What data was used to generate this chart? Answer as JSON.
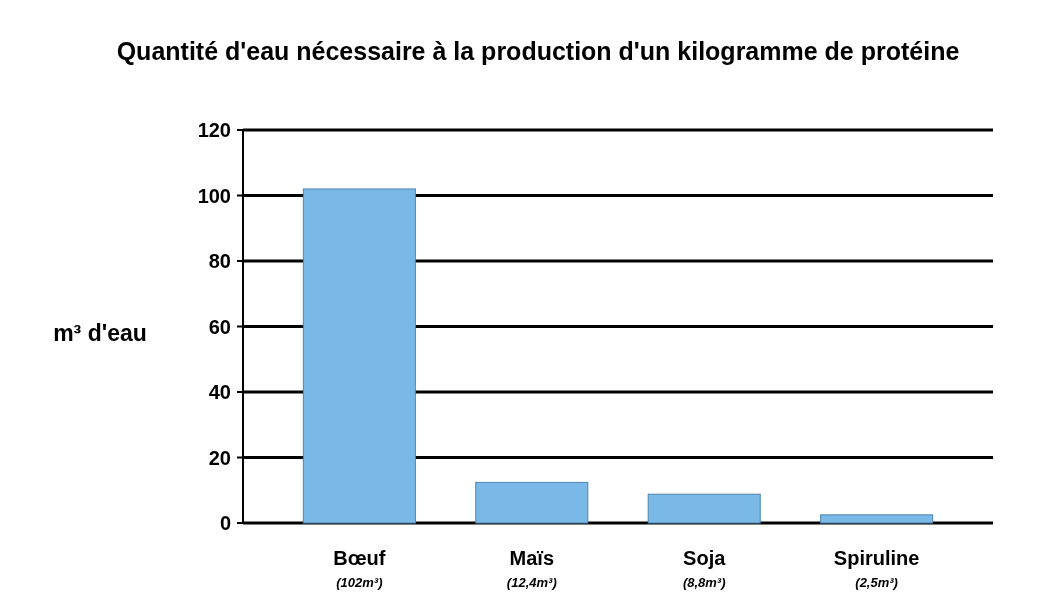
{
  "chart_data": {
    "type": "bar",
    "title": "Quantité d'eau nécessaire à la production d'un kilogramme de protéine",
    "ylabel": "m³ d'eau",
    "categories": [
      "Bœuf",
      "Maïs",
      "Soja",
      "Spiruline"
    ],
    "values": [
      102,
      12.4,
      8.8,
      2.5
    ],
    "value_labels": [
      "(102m³)",
      "(12,4m³)",
      "(8,8m³)",
      "(2,5m³)"
    ],
    "color": "#7ab8e8",
    "ylim": [
      0,
      120
    ],
    "yticks": [
      0,
      20,
      40,
      60,
      80,
      100,
      120
    ],
    "grid": true
  }
}
